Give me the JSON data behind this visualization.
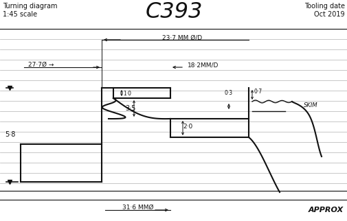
{
  "title": "C393",
  "top_left_line1": "Turning diagram",
  "top_left_line2": "1:45 scale",
  "top_right_line1": "Tooling date",
  "top_right_line2": "Oct 2019",
  "bg_color": "#ffffff",
  "lc": "#111111",
  "glc": "#b0b0b0",
  "dim_237": "23·7 MM Ø/D",
  "dim_277": "27·7Ø",
  "dim_182": "18·2MM/D",
  "dim_10": "1·0",
  "dim_35": "3·5",
  "dim_20": "2·0",
  "dim_03": "0·3",
  "dim_07": "0·7",
  "dim_58": "5·8",
  "dim_316": "31·6 MMØ",
  "approx": "APPROX",
  "skim": "SKIM"
}
